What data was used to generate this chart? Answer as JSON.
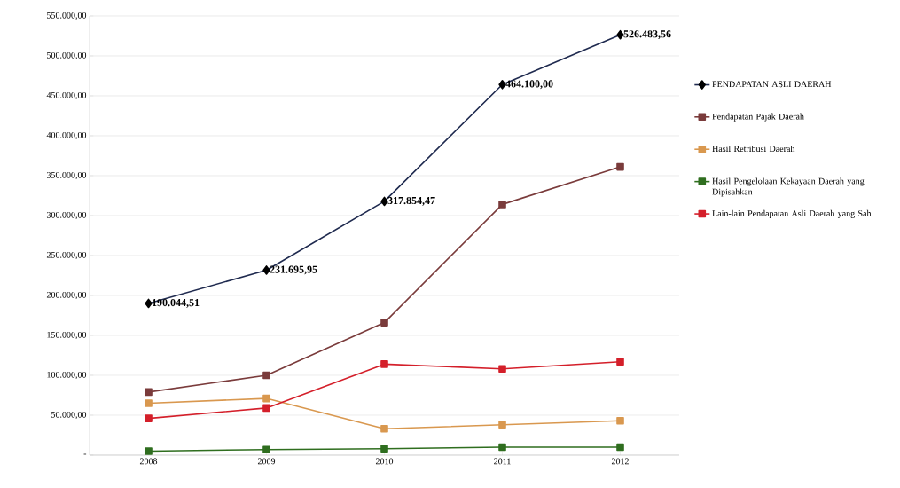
{
  "chart_data": {
    "type": "line",
    "categories": [
      "2008",
      "2009",
      "2010",
      "2011",
      "2012"
    ],
    "series": [
      {
        "name": "PENDAPATAN ASLI DAERAH",
        "color": "#1f2a4f",
        "marker": "diamond",
        "values": [
          190044.51,
          231695.95,
          317854.47,
          464100.0,
          526483.56
        ],
        "value_labels": [
          "190.044,51",
          "231.695,95",
          "317.854,47",
          "464.100,00",
          "526.483,56"
        ]
      },
      {
        "name": "Pendapatan Pajak Daerah",
        "color": "#7a3b3b",
        "marker": "square",
        "values": [
          79000,
          100000,
          166000,
          314000,
          361000
        ]
      },
      {
        "name": "Hasil Retribusi Daerah",
        "color": "#d9984f",
        "marker": "square",
        "values": [
          65000,
          71000,
          33000,
          38000,
          43000
        ]
      },
      {
        "name": "Hasil Pengelolaan Kekayaan Daerah yang Dipisahkan",
        "color": "#2f6e1f",
        "marker": "square",
        "values": [
          5000,
          7000,
          8000,
          10000,
          10000
        ]
      },
      {
        "name": "Lain-lain Pendapatan Asli Daerah yang Sah",
        "color": "#d41f2a",
        "marker": "square",
        "values": [
          46000,
          59000,
          114000,
          108000,
          117000
        ]
      }
    ],
    "ylim": [
      0,
      550000
    ],
    "yticks": [
      {
        "value": 0,
        "label": "-"
      },
      {
        "value": 50000,
        "label": "50.000,00"
      },
      {
        "value": 100000,
        "label": "100.000,00"
      },
      {
        "value": 150000,
        "label": "150.000,00"
      },
      {
        "value": 200000,
        "label": "200.000,00"
      },
      {
        "value": 250000,
        "label": "250.000,00"
      },
      {
        "value": 300000,
        "label": "300.000,00"
      },
      {
        "value": 350000,
        "label": "350.000,00"
      },
      {
        "value": 400000,
        "label": "400.000,00"
      },
      {
        "value": 450000,
        "label": "450.000,00"
      },
      {
        "value": 500000,
        "label": "500.000,00"
      },
      {
        "value": 550000,
        "label": "550.000,00"
      }
    ],
    "grid": "y",
    "legend": "right"
  }
}
